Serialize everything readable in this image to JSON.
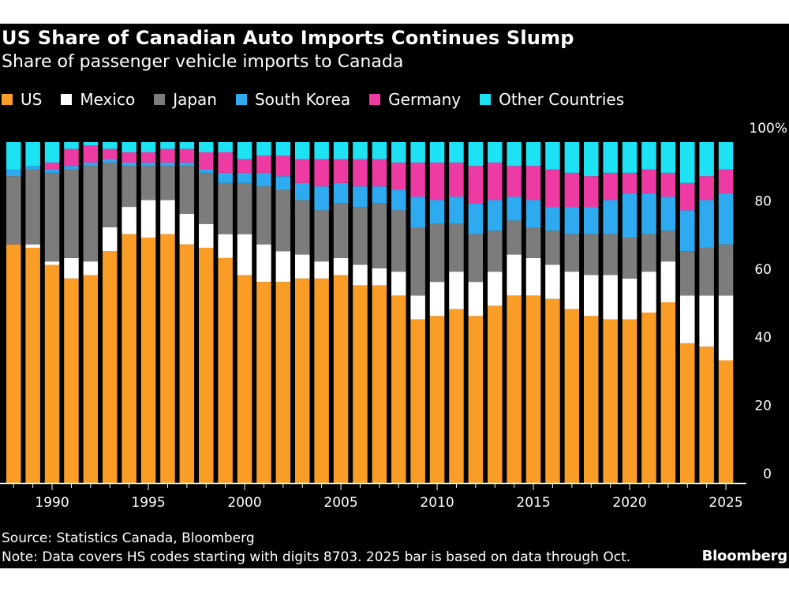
{
  "colors": {
    "US": "#f99d26",
    "Mexico": "#ffffff",
    "Japan": "#7c7c7c",
    "South Korea": "#2eaaf0",
    "Germany": "#ee3ba3",
    "Other Countries": "#1de2f4",
    "background": "#000000",
    "axis": "#ffffff"
  },
  "chart_data": {
    "type": "bar",
    "stacked": true,
    "title": "US Share of Canadian Auto Imports Continues Slump",
    "subtitle": "Share of passenger vehicle imports to Canada",
    "xlabel": "",
    "ylabel": "",
    "ylim": [
      0,
      100
    ],
    "y_ticks": [
      "0",
      "20",
      "40",
      "60",
      "80",
      "100%"
    ],
    "x_ticks": [
      "1990",
      "1995",
      "2000",
      "2005",
      "2010",
      "2015",
      "2020",
      "2025"
    ],
    "legend_position": "top",
    "categories": [
      "1988",
      "1989",
      "1990",
      "1991",
      "1992",
      "1993",
      "1994",
      "1995",
      "1996",
      "1997",
      "1998",
      "1999",
      "2000",
      "2001",
      "2002",
      "2003",
      "2004",
      "2005",
      "2006",
      "2007",
      "2008",
      "2009",
      "2010",
      "2011",
      "2012",
      "2013",
      "2014",
      "2015",
      "2016",
      "2017",
      "2018",
      "2019",
      "2020",
      "2021",
      "2022",
      "2023",
      "2024",
      "2025"
    ],
    "series": [
      {
        "name": "US",
        "values": [
          70,
          69,
          64,
          60,
          61,
          68,
          73,
          72,
          73,
          70,
          69,
          66,
          61,
          59,
          59,
          60,
          60,
          61,
          58,
          58,
          55,
          48,
          49,
          51,
          49,
          52,
          55,
          55,
          54,
          51,
          49,
          48,
          48,
          50,
          53,
          41,
          40,
          36
        ]
      },
      {
        "name": "Mexico",
        "values": [
          0,
          1,
          1,
          6,
          4,
          7,
          8,
          11,
          10,
          9,
          7,
          7,
          12,
          11,
          9,
          7,
          5,
          5,
          6,
          5,
          7,
          7,
          10,
          11,
          10,
          10,
          12,
          11,
          10,
          11,
          12,
          13,
          12,
          12,
          12,
          14,
          15,
          19
        ]
      },
      {
        "name": "Japan",
        "values": [
          20,
          22,
          26,
          26,
          28,
          19,
          12,
          10,
          10,
          14,
          15,
          15,
          15,
          17,
          18,
          16,
          15,
          16,
          17,
          19,
          18,
          20,
          17,
          14,
          14,
          12,
          10,
          9,
          10,
          11,
          12,
          12,
          12,
          11,
          9,
          13,
          14,
          15
        ]
      },
      {
        "name": "South Korea",
        "values": [
          2,
          1,
          1,
          1,
          1,
          1,
          1,
          1,
          1,
          1,
          1,
          3,
          3,
          4,
          4,
          5,
          7,
          6,
          6,
          5,
          6,
          9,
          7,
          8,
          9,
          9,
          7,
          8,
          7,
          8,
          8,
          10,
          13,
          12,
          10,
          12,
          14,
          15
        ]
      },
      {
        "name": "Germany",
        "values": [
          0,
          0,
          2,
          5,
          5,
          3,
          3,
          3,
          4,
          4,
          5,
          6,
          4,
          5,
          6,
          7,
          8,
          7,
          8,
          8,
          8,
          10,
          11,
          10,
          11,
          11,
          9,
          10,
          11,
          10,
          9,
          8,
          6,
          7,
          7,
          8,
          7,
          7
        ]
      },
      {
        "name": "Other Countries",
        "values": [
          8,
          7,
          6,
          2,
          1,
          2,
          3,
          3,
          2,
          2,
          3,
          3,
          5,
          4,
          4,
          5,
          5,
          5,
          5,
          5,
          6,
          6,
          6,
          6,
          7,
          6,
          7,
          7,
          8,
          9,
          10,
          9,
          9,
          8,
          9,
          12,
          10,
          8
        ]
      }
    ]
  },
  "footer": {
    "source": "Source: Statistics Canada, Bloomberg",
    "note": "Note: Data covers HS codes starting with digits 8703. 2025 bar is based on data through Oct.",
    "brand": "Bloomberg"
  }
}
